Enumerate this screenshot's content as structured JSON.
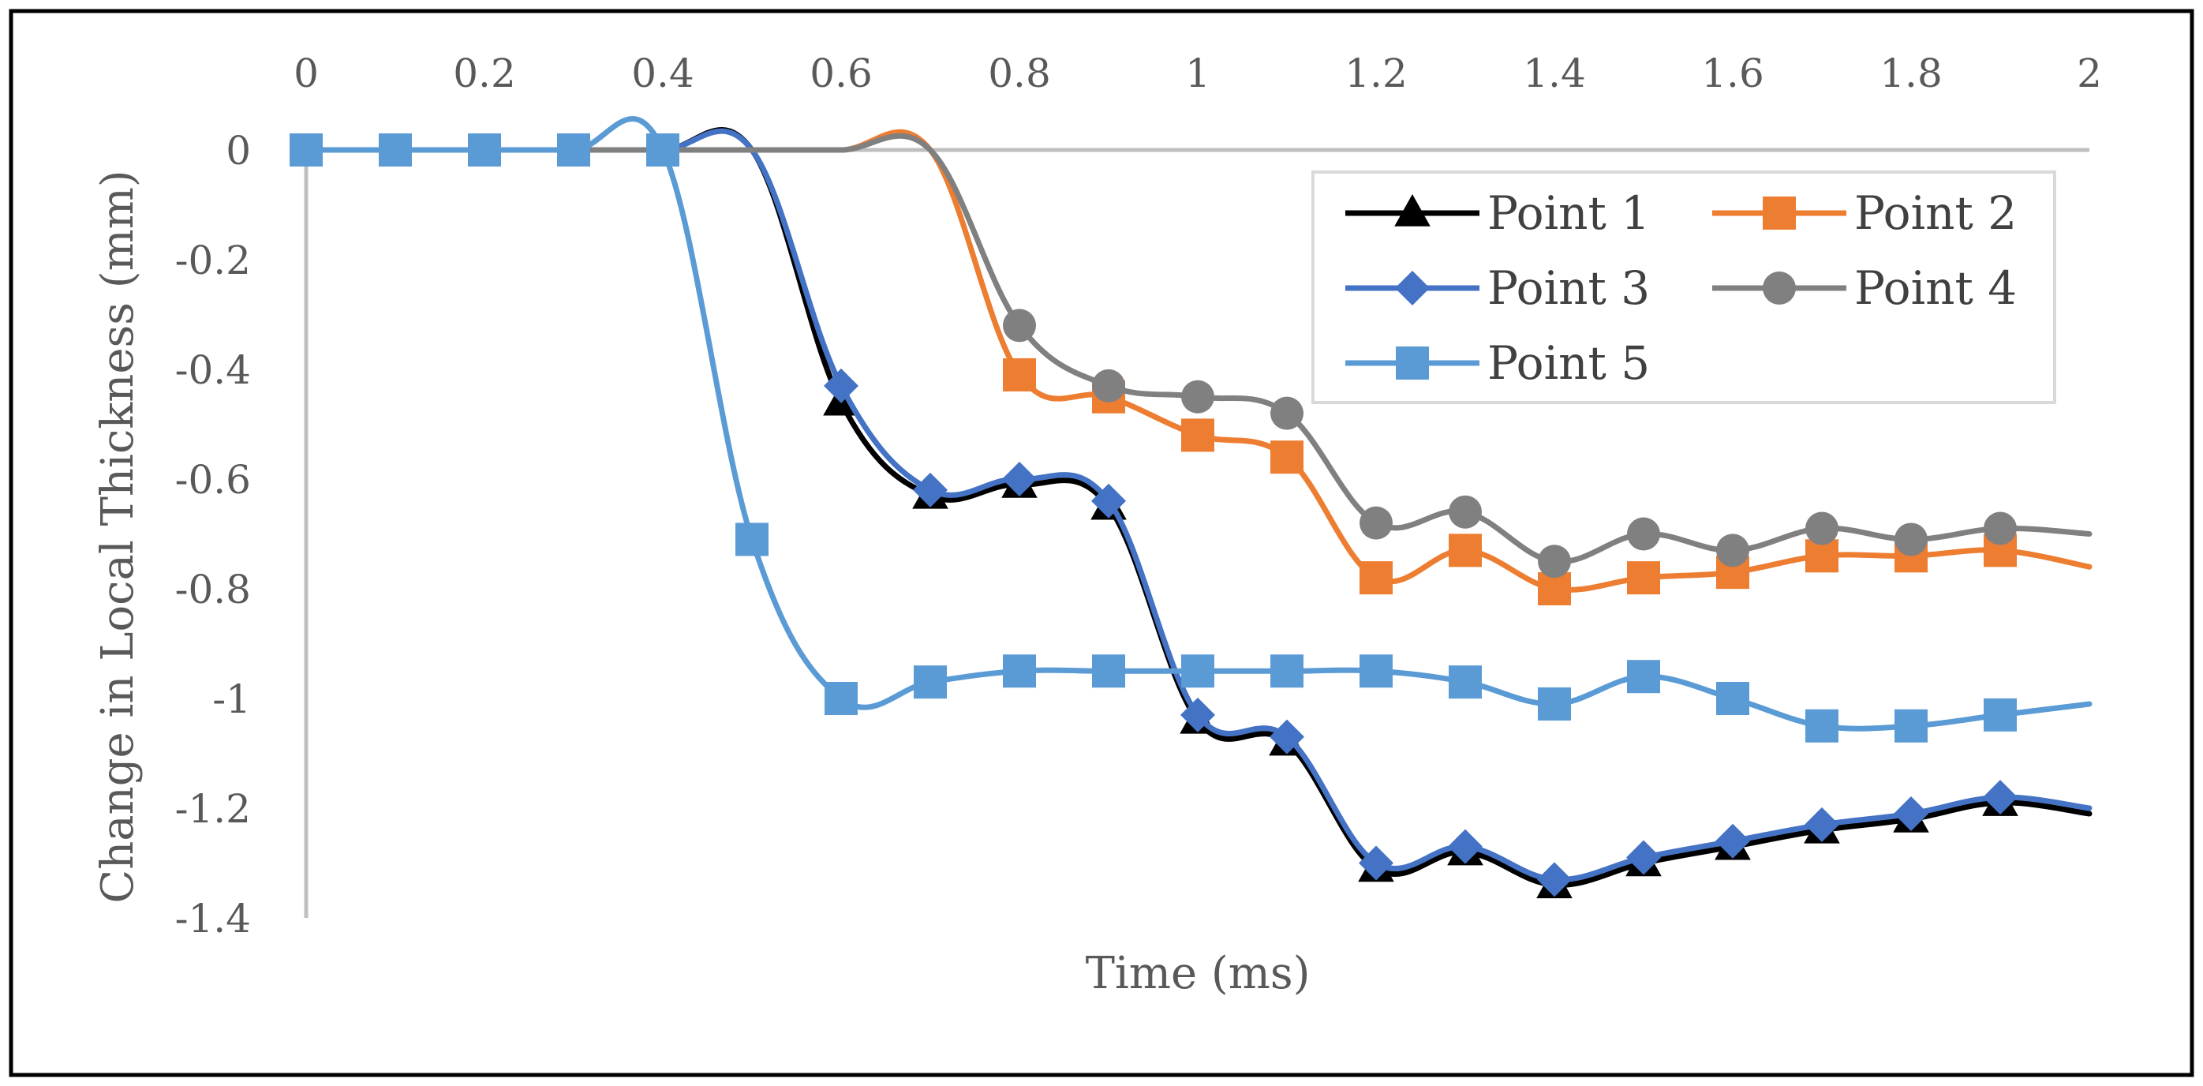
{
  "chart_data": {
    "type": "line",
    "title": "",
    "xlabel": "Time (ms)",
    "ylabel": "Change in Local Thickness (mm)",
    "xlim": [
      0,
      2
    ],
    "ylim": [
      -1.4,
      0
    ],
    "x_ticks": [
      "0",
      "0.2",
      "0.4",
      "0.6",
      "0.8",
      "1",
      "1.2",
      "1.4",
      "1.6",
      "1.8",
      "2"
    ],
    "y_ticks": [
      "0",
      "-0.2",
      "-0.4",
      "-0.6",
      "-0.8",
      "-1",
      "-1.2",
      "-1.4"
    ],
    "grid": false,
    "legend_position": "top-right",
    "x": [
      0,
      0.1,
      0.2,
      0.3,
      0.4,
      0.5,
      0.6,
      0.7,
      0.8,
      0.9,
      1.0,
      1.1,
      1.2,
      1.3,
      1.4,
      1.5,
      1.6,
      1.7,
      1.8,
      1.9,
      2.0
    ],
    "series": [
      {
        "name": "Point 1",
        "color": "#000000",
        "marker": "triangle",
        "values": [
          0,
          0,
          0,
          0,
          0,
          0,
          -0.46,
          -0.63,
          -0.61,
          -0.65,
          -1.04,
          -1.08,
          -1.31,
          -1.28,
          -1.34,
          -1.3,
          -1.27,
          -1.24,
          -1.22,
          -1.19,
          -1.21
        ]
      },
      {
        "name": "Point 2",
        "color": "#ED7D31",
        "marker": "square",
        "values": [
          0,
          0,
          0,
          0,
          0,
          0,
          0,
          0,
          -0.41,
          -0.45,
          -0.52,
          -0.56,
          -0.78,
          -0.73,
          -0.8,
          -0.78,
          -0.77,
          -0.74,
          -0.74,
          -0.73,
          -0.76
        ]
      },
      {
        "name": "Point 3",
        "color": "#4472C4",
        "marker": "diamond",
        "values": [
          0,
          0,
          0,
          0,
          0,
          0,
          -0.43,
          -0.62,
          -0.6,
          -0.64,
          -1.03,
          -1.07,
          -1.3,
          -1.27,
          -1.33,
          -1.29,
          -1.26,
          -1.23,
          -1.21,
          -1.18,
          -1.2
        ]
      },
      {
        "name": "Point 4",
        "color": "#808080",
        "marker": "circle",
        "values": [
          0,
          0,
          0,
          0,
          0,
          0,
          0,
          0,
          -0.32,
          -0.43,
          -0.45,
          -0.48,
          -0.68,
          -0.66,
          -0.75,
          -0.7,
          -0.73,
          -0.69,
          -0.71,
          -0.69,
          -0.7
        ]
      },
      {
        "name": "Point 5",
        "color": "#5B9BD5",
        "marker": "square",
        "values": [
          0,
          0,
          0,
          0,
          0,
          -0.71,
          -1.0,
          -0.97,
          -0.95,
          -0.95,
          -0.95,
          -0.95,
          -0.95,
          -0.97,
          -1.01,
          -0.96,
          -1.0,
          -1.05,
          -1.05,
          -1.03,
          -1.01
        ]
      }
    ]
  }
}
